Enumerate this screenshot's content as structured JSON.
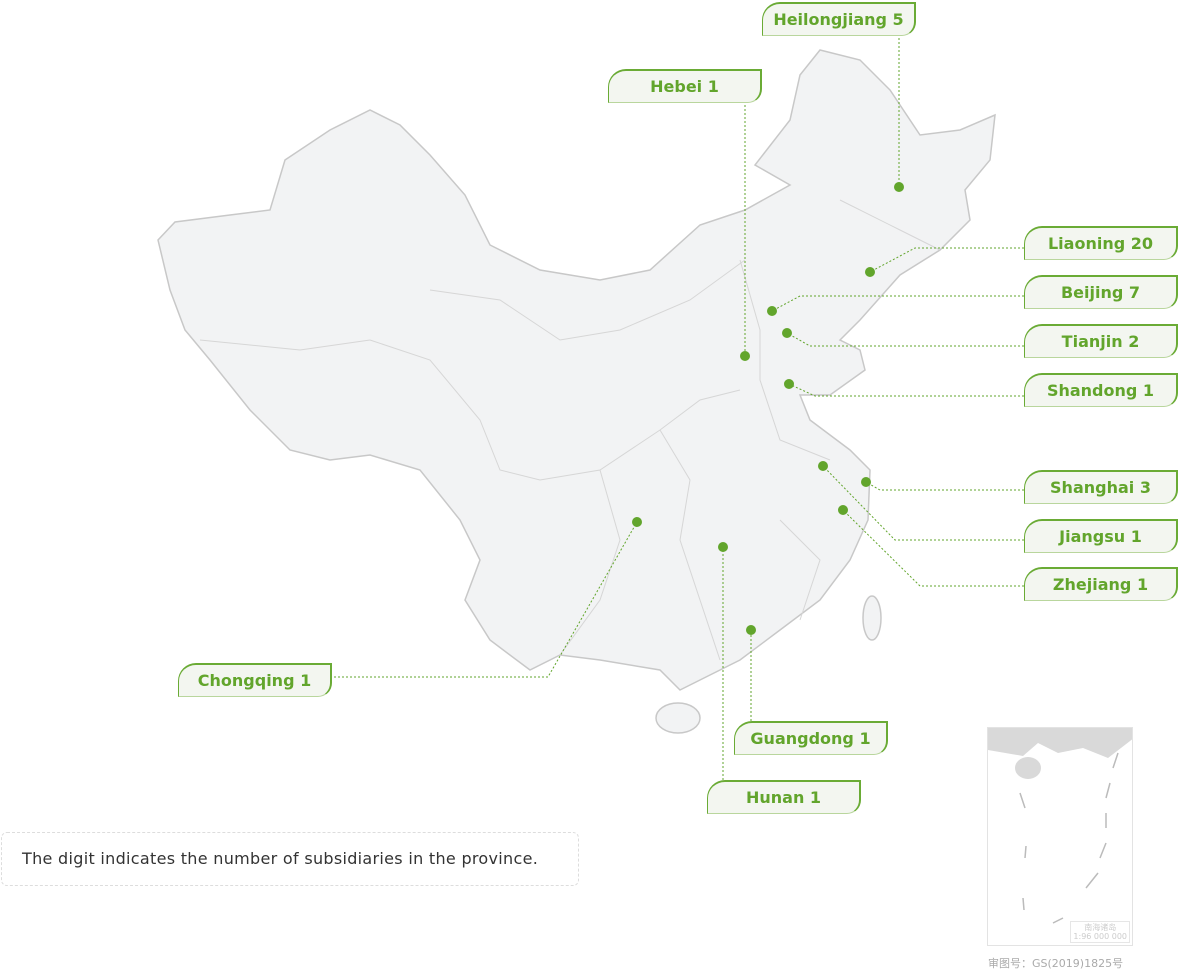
{
  "colors": {
    "accent": "#62a52c",
    "land": "#f2f3f4",
    "border": "#c8c8c8"
  },
  "labels": [
    {
      "id": "heilongjiang",
      "text": "Heilongjiang 5",
      "province": "Heilongjiang",
      "count": 5
    },
    {
      "id": "hebei",
      "text": "Hebei 1",
      "province": "Hebei",
      "count": 1
    },
    {
      "id": "liaoning",
      "text": "Liaoning 20",
      "province": "Liaoning",
      "count": 20
    },
    {
      "id": "beijing",
      "text": "Beijing 7",
      "province": "Beijing",
      "count": 7
    },
    {
      "id": "tianjin",
      "text": "Tianjin 2",
      "province": "Tianjin",
      "count": 2
    },
    {
      "id": "shandong",
      "text": "Shandong 1",
      "province": "Shandong",
      "count": 1
    },
    {
      "id": "shanghai",
      "text": "Shanghai 3",
      "province": "Shanghai",
      "count": 3
    },
    {
      "id": "jiangsu",
      "text": "Jiangsu 1",
      "province": "Jiangsu",
      "count": 1
    },
    {
      "id": "zhejiang",
      "text": "Zhejiang 1",
      "province": "Zhejiang",
      "count": 1
    },
    {
      "id": "chongqing",
      "text": "Chongqing 1",
      "province": "Chongqing",
      "count": 1
    },
    {
      "id": "guangdong",
      "text": "Guangdong 1",
      "province": "Guangdong",
      "count": 1
    },
    {
      "id": "hunan",
      "text": "Hunan 1",
      "province": "Hunan",
      "count": 1
    }
  ],
  "note": "The digit indicates the number of subsidiaries in the province.",
  "inset": {
    "title": "南海诸岛",
    "scale": "1:96 000 000"
  },
  "map_approval": "审图号：GS(2019)1825号"
}
